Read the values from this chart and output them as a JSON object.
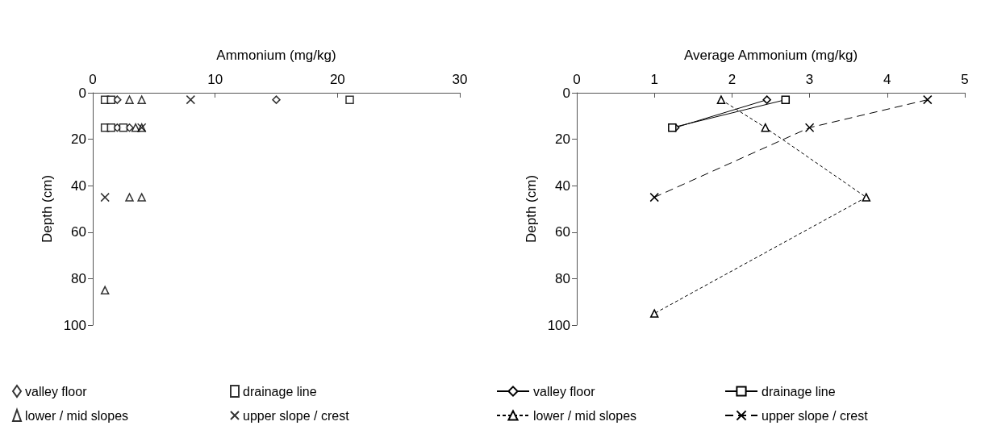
{
  "chart_data": [
    {
      "type": "scatter",
      "xlabel": "Ammonium (mg/kg)",
      "ylabel": "Depth (cm)",
      "xlim": [
        0,
        30
      ],
      "xticks": [
        0,
        10,
        20,
        30
      ],
      "ylim": [
        100,
        0
      ],
      "yticks": [
        0,
        20,
        40,
        60,
        80,
        100
      ],
      "grid": false,
      "legend": "bottom",
      "series": [
        {
          "name": "valley floor",
          "color": "#000000",
          "marker": "diamond",
          "x": [
            2,
            15,
            2,
            3
          ],
          "values": [
            3,
            3,
            15,
            15
          ]
        },
        {
          "name": "drainage line",
          "color": "#000000",
          "marker": "square",
          "x": [
            1,
            1.5,
            21,
            1,
            1.5,
            2.5
          ],
          "values": [
            3,
            3,
            3,
            15,
            15,
            15
          ]
        },
        {
          "name": "lower / mid slopes",
          "color": "#000000",
          "marker": "triangle",
          "x": [
            3,
            4,
            3.5,
            4,
            3,
            4,
            1
          ],
          "values": [
            3,
            3,
            15,
            15,
            45,
            45,
            85
          ]
        },
        {
          "name": "upper slope / crest",
          "color": "#000000",
          "marker": "cross",
          "x": [
            8,
            4,
            1
          ],
          "values": [
            3,
            15,
            45
          ]
        }
      ]
    },
    {
      "type": "line",
      "xlabel": "Average Ammonium (mg/kg)",
      "ylabel": "Depth (cm)",
      "xlim": [
        0,
        5
      ],
      "xticks": [
        0,
        1,
        2,
        3,
        4,
        5
      ],
      "ylim": [
        100,
        0
      ],
      "yticks": [
        0,
        20,
        40,
        60,
        80,
        100
      ],
      "grid": false,
      "legend": "bottom",
      "series": [
        {
          "name": "valley floor",
          "color": "#000000",
          "marker": "diamond",
          "line_style": "solid",
          "x": [
            2.45,
            1.27
          ],
          "values": [
            3,
            15
          ]
        },
        {
          "name": "drainage line",
          "color": "#000000",
          "marker": "square",
          "line_style": "solid",
          "x": [
            2.69,
            1.23
          ],
          "values": [
            3,
            15
          ]
        },
        {
          "name": "lower / mid slopes",
          "color": "#000000",
          "marker": "triangle",
          "line_style": "dotted",
          "x": [
            1.86,
            2.43,
            3.73,
            1.0
          ],
          "values": [
            3,
            15,
            45,
            95
          ]
        },
        {
          "name": "upper slope / crest",
          "color": "#000000",
          "marker": "cross",
          "line_style": "dashed",
          "x": [
            4.52,
            3.0,
            1.0
          ],
          "values": [
            3,
            15,
            45
          ]
        }
      ]
    }
  ]
}
